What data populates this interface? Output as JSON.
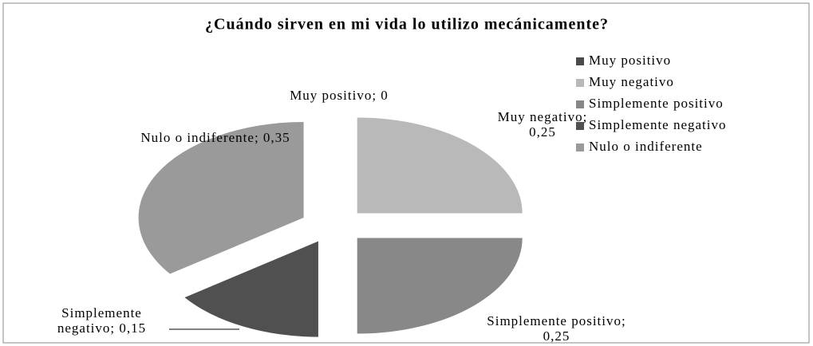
{
  "chart_data": {
    "type": "pie",
    "title": "¿Cuándo sirven en mi vida lo utilizo mecánicamente?",
    "categories": [
      "Muy positivo",
      "Muy negativo",
      "Simplemente positivo",
      "Simplemente negativo",
      "Nulo o indiferente"
    ],
    "values": [
      0,
      0.25,
      0.25,
      0.15,
      0.35
    ],
    "value_labels": [
      "Muy positivo; 0",
      "Muy negativo; 0,25",
      "Simplemente positivo; 0,25",
      "Simplemente negativo; 0,15",
      "Nulo o indiferente; 0,35"
    ],
    "colors": [
      "#4a4a4a",
      "#b9b9b9",
      "#888888",
      "#505050",
      "#9a9a9a"
    ],
    "legend": "right"
  }
}
